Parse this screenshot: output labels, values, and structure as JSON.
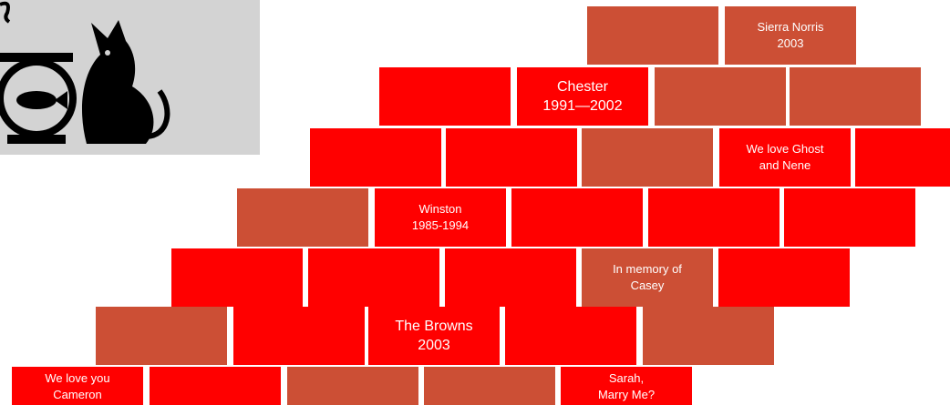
{
  "bricks": [
    {
      "lines": [
        "Sierra Norris",
        "2003"
      ]
    },
    {
      "lines": [
        "Chester",
        "1991—2002"
      ]
    },
    {
      "lines": [
        "We love Ghost",
        "and Nene"
      ]
    },
    {
      "lines": [
        "Winston",
        "1985-1994"
      ]
    },
    {
      "lines": [
        "In memory of",
        "Casey"
      ]
    },
    {
      "lines": [
        "The Browns",
        "2003"
      ]
    },
    {
      "lines": [
        "We love you",
        "Cameron"
      ]
    },
    {
      "lines": [
        "Sarah,",
        "Marry Me?"
      ]
    }
  ]
}
